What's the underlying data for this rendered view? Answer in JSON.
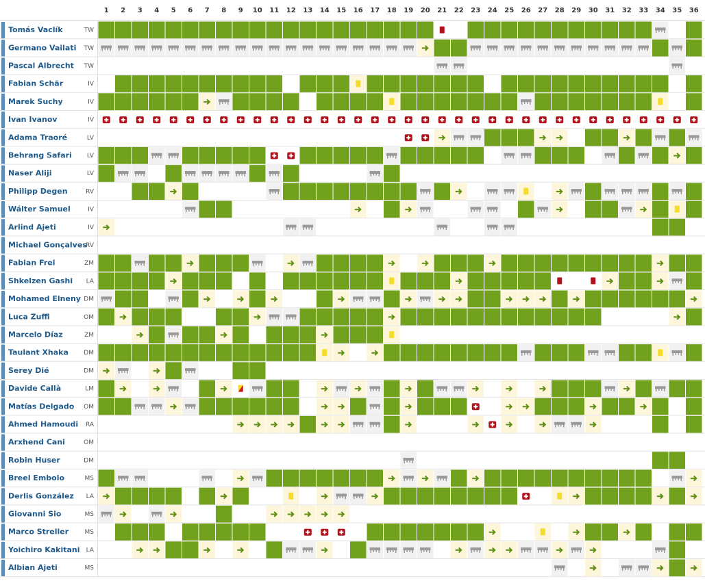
{
  "header": {
    "matchdays": [
      "1",
      "2",
      "3",
      "4",
      "5",
      "6",
      "7",
      "8",
      "9",
      "10",
      "11",
      "12",
      "13",
      "14",
      "15",
      "16",
      "17",
      "18",
      "19",
      "20",
      "21",
      "22",
      "23",
      "24",
      "25",
      "26",
      "27",
      "28",
      "29",
      "30",
      "31",
      "32",
      "33",
      "34",
      "35",
      "36"
    ]
  },
  "players": [
    {
      "name": "Tomás Vaclík",
      "pos": "TW",
      "cells": "GGGGGGGGGGGGGGGGGGGGR.GGGGGGGGGGGB.G"
    },
    {
      "name": "Germano Vailati",
      "pos": "TW",
      "cells": "BBBBBBBBBBBBBBBBBBBSGGBBBBBBBBBBBGBG"
    },
    {
      "name": "Pascal Albrecht",
      "pos": "TW",
      "cells": "....................BB............B."
    },
    {
      "name": "Fabian Schär",
      "pos": "IV",
      "cells": ".GGGGGGGGGG.GGGYGGGGGGG.GGGGGGGGGG.G"
    },
    {
      "name": "Marek Suchy",
      "pos": "IV",
      "cells": "GGGGGGSBGGGG.GGGGYGGGGGGGBGGGGGGGY.G"
    },
    {
      "name": "Ivan Ivanov",
      "pos": "IV",
      "cells": "IIIIIIIIIIIIIIIIIIIIIIIIIIIIIIIIIIII"
    },
    {
      "name": "Adama Traoré",
      "pos": "LV",
      "cells": "..................IISBBGGGSS.GGSGBGB"
    },
    {
      "name": "Behrang Safari",
      "pos": "LV",
      "cells": "GGGBBGGGGGIIGGGGGBGGGGG.BBGGG.BGBGSG"
    },
    {
      "name": "Naser Aliji",
      "pos": "LV",
      "cells": "GBB.GBBBBGBG....BG.................."
    },
    {
      "name": "Philipp Degen",
      "pos": "RV",
      "cells": "..GGSG....BGGGGGGGGBGS.BBY.SBGBBBGBG"
    },
    {
      "name": "Wálter Samuel",
      "pos": "IV",
      "cells": ".....BGG.......S.GSB..BB.GBS.GGBSGYG"
    },
    {
      "name": "Arlind Ajeti",
      "pos": "IV",
      "cells": "S..........BB.......B..BB........GG."
    },
    {
      "name": "Michael Gonçalves",
      "pos": "RV",
      "cells": "...................................."
    },
    {
      "name": "Fabian Frei",
      "pos": "ZM",
      "cells": "GGBGGSGGGB.SBGGGGS.SGGGSGGGGGGGGGSGG"
    },
    {
      "name": "Shkelzen Gashi",
      "pos": "LA",
      "cells": "GGGGSGGG.G.GGGGGGYGGGSGGGGGR.RSGGSBG"
    },
    {
      "name": "Mohamed Elneny",
      "pos": "DM",
      "cells": "BGG.BGS.SGS..GSBBGSBSSGGSSSGSGGGGGGS"
    },
    {
      "name": "Luca Zuffi",
      "pos": "OM",
      "cells": "GSGGG..GGSBBGGGGGSGGGGGGGGGGGG....SG"
    },
    {
      "name": "Marcelo Díaz",
      "pos": "ZM",
      "cells": "..SGBGGSG.GGGSGGGY.................."
    },
    {
      "name": "Taulant Xhaka",
      "pos": "DM",
      "cells": "GGGGGGGGGGGGGYS.SGGGGGGGGBGGGBBGGYBG"
    },
    {
      "name": "Serey Dié",
      "pos": "DM",
      "cells": "SB.SGB..GG.........................."
    },
    {
      "name": "Davide Callà",
      "pos": "LM",
      "cells": "GS.SB.GSZBGG.SBSBGSGBBS.S.SGGGBSGBGG"
    },
    {
      "name": "Matías Delgado",
      "pos": "OM",
      "cells": "GGBBSBGGGGGG.SSGBGSGGGI.SSGGGSGGSG.G"
    },
    {
      "name": "Ahmed Hamoudi",
      "pos": "RA",
      "cells": "........SSSSGSSBBGS...SIS.SBBS...G.G"
    },
    {
      "name": "Arxhend Cani",
      "pos": "OM",
      "cells": "...................................."
    },
    {
      "name": "Robin Huser",
      "pos": "DM",
      "cells": "..................B..............GG."
    },
    {
      "name": "Breel Embolo",
      "pos": "MS",
      "cells": "GBB...B.SBGGGGGGGSBSBGSGGGGGGGGGG.BS"
    },
    {
      "name": "Derlis González",
      "pos": "LA",
      "cells": "SGGGG.GSG..Y.SBBSGGGGGGGGI.YSGGGGSGS"
    },
    {
      "name": "Giovanni Sio",
      "pos": "MS",
      "cells": "BS.BS..G..SSSSS....................."
    },
    {
      "name": "Marco Streller",
      "pos": "MS",
      "cells": ".GGG.GGGGG..III.GGGGGGGS..Y.SGGSG.GG"
    },
    {
      "name": "Yoichiro Kakitani",
      "pos": "LA",
      "cells": "..SSGGS.S.GBBS.GBBBB.SBSSBBSBS...BG."
    },
    {
      "name": "Albian Ajeti",
      "pos": "MS",
      "cells": "...........................B.S.BBSGS"
    }
  ]
}
